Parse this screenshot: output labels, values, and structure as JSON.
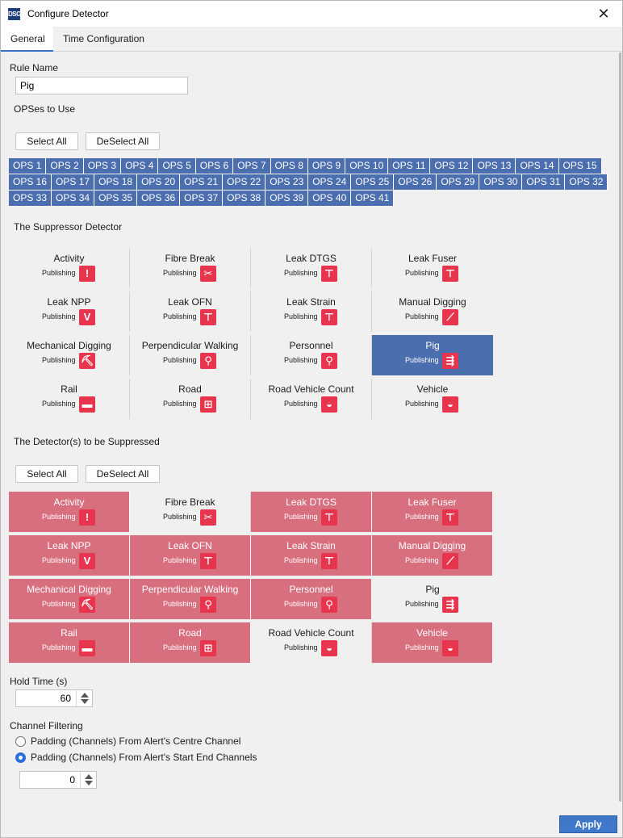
{
  "window": {
    "title": "Configure Detector",
    "app_icon_text": "DSG",
    "close_glyph": "✕"
  },
  "tabs": [
    {
      "label": "General",
      "active": true
    },
    {
      "label": "Time Configuration",
      "active": false
    }
  ],
  "rule": {
    "label": "Rule Name",
    "value": "Pig"
  },
  "opses": {
    "label": "OPSes to Use",
    "select_all": "Select All",
    "deselect_all": "DeSelect All",
    "rows": [
      [
        "OPS 1",
        "OPS 2",
        "OPS 3",
        "OPS 4",
        "OPS 5",
        "OPS 6",
        "OPS 7",
        "OPS 8",
        "OPS 9",
        "OPS 10",
        "OPS 11",
        "OPS 12",
        "OPS 13",
        "OPS 14",
        "OPS 15"
      ],
      [
        "OPS 16",
        "OPS 17",
        "OPS 18",
        "OPS 20",
        "OPS 21",
        "OPS 22",
        "OPS 23",
        "OPS 24",
        "OPS 25",
        "OPS 26",
        "OPS 29",
        "OPS 30",
        "OPS 31",
        "OPS 32"
      ],
      [
        "OPS 33",
        "OPS 34",
        "OPS 35",
        "OPS 36",
        "OPS 37",
        "OPS 38",
        "OPS 39",
        "OPS 40",
        "OPS 41"
      ]
    ]
  },
  "suppressor": {
    "label": "The Suppressor Detector",
    "items": [
      {
        "name": "Activity",
        "status": "Publishing",
        "icon": "alert-icon",
        "glyph": "!",
        "selected": false
      },
      {
        "name": "Fibre Break",
        "status": "Publishing",
        "icon": "fibre-break-icon",
        "glyph": "✂",
        "selected": false
      },
      {
        "name": "Leak DTGS",
        "status": "Publishing",
        "icon": "faucet-icon",
        "glyph": "⊤",
        "selected": false
      },
      {
        "name": "Leak Fuser",
        "status": "Publishing",
        "icon": "faucet-icon",
        "glyph": "⊤",
        "selected": false
      },
      {
        "name": "Leak NPP",
        "status": "Publishing",
        "icon": "v-wave-icon",
        "glyph": "V",
        "selected": false
      },
      {
        "name": "Leak OFN",
        "status": "Publishing",
        "icon": "faucet-icon",
        "glyph": "⊤",
        "selected": false
      },
      {
        "name": "Leak Strain",
        "status": "Publishing",
        "icon": "faucet-icon",
        "glyph": "⊤",
        "selected": false
      },
      {
        "name": "Manual Digging",
        "status": "Publishing",
        "icon": "shovel-icon",
        "glyph": "⟋",
        "selected": false
      },
      {
        "name": "Mechanical Digging",
        "status": "Publishing",
        "icon": "excavator-icon",
        "glyph": "⛏",
        "selected": false
      },
      {
        "name": "Perpendicular Walking",
        "status": "Publishing",
        "icon": "walker-icon",
        "glyph": "⚲",
        "selected": false
      },
      {
        "name": "Personnel",
        "status": "Publishing",
        "icon": "walker-icon",
        "glyph": "⚲",
        "selected": false
      },
      {
        "name": "Pig",
        "status": "Publishing",
        "icon": "pig-icon",
        "glyph": "⇶",
        "selected": true
      },
      {
        "name": "Rail",
        "status": "Publishing",
        "icon": "train-icon",
        "glyph": "▬",
        "selected": false
      },
      {
        "name": "Road",
        "status": "Publishing",
        "icon": "traffic-icon",
        "glyph": "⊞",
        "selected": false
      },
      {
        "name": "Road Vehicle Count",
        "status": "Publishing",
        "icon": "car-icon",
        "glyph": "◒",
        "selected": false
      },
      {
        "name": "Vehicle",
        "status": "Publishing",
        "icon": "car-icon",
        "glyph": "◒",
        "selected": false
      }
    ]
  },
  "suppressed": {
    "label": "The Detector(s) to be Suppressed",
    "select_all": "Select All",
    "deselect_all": "DeSelect All",
    "items": [
      {
        "name": "Activity",
        "status": "Publishing",
        "icon": "alert-icon",
        "glyph": "!",
        "suppressed": true
      },
      {
        "name": "Fibre Break",
        "status": "Publishing",
        "icon": "fibre-break-icon",
        "glyph": "✂",
        "suppressed": false
      },
      {
        "name": "Leak DTGS",
        "status": "Publishing",
        "icon": "faucet-icon",
        "glyph": "⊤",
        "suppressed": true
      },
      {
        "name": "Leak Fuser",
        "status": "Publishing",
        "icon": "faucet-icon",
        "glyph": "⊤",
        "suppressed": true
      },
      {
        "name": "Leak NPP",
        "status": "Publishing",
        "icon": "v-wave-icon",
        "glyph": "V",
        "suppressed": true
      },
      {
        "name": "Leak OFN",
        "status": "Publishing",
        "icon": "faucet-icon",
        "glyph": "⊤",
        "suppressed": true
      },
      {
        "name": "Leak Strain",
        "status": "Publishing",
        "icon": "faucet-icon",
        "glyph": "⊤",
        "suppressed": true
      },
      {
        "name": "Manual Digging",
        "status": "Publishing",
        "icon": "shovel-icon",
        "glyph": "⟋",
        "suppressed": true
      },
      {
        "name": "Mechanical Digging",
        "status": "Publishing",
        "icon": "excavator-icon",
        "glyph": "⛏",
        "suppressed": true
      },
      {
        "name": "Perpendicular Walking",
        "status": "Publishing",
        "icon": "walker-icon",
        "glyph": "⚲",
        "suppressed": true
      },
      {
        "name": "Personnel",
        "status": "Publishing",
        "icon": "walker-icon",
        "glyph": "⚲",
        "suppressed": true
      },
      {
        "name": "Pig",
        "status": "Publishing",
        "icon": "pig-icon",
        "glyph": "⇶",
        "suppressed": false
      },
      {
        "name": "Rail",
        "status": "Publishing",
        "icon": "train-icon",
        "glyph": "▬",
        "suppressed": true
      },
      {
        "name": "Road",
        "status": "Publishing",
        "icon": "traffic-icon",
        "glyph": "⊞",
        "suppressed": true
      },
      {
        "name": "Road Vehicle Count",
        "status": "Publishing",
        "icon": "car-icon",
        "glyph": "◒",
        "suppressed": false
      },
      {
        "name": "Vehicle",
        "status": "Publishing",
        "icon": "car-icon",
        "glyph": "◒",
        "suppressed": true
      }
    ]
  },
  "hold_time": {
    "label": "Hold Time (s)",
    "value": "60"
  },
  "channel_filtering": {
    "label": "Channel Filtering",
    "options": [
      {
        "label": "Padding (Channels) From Alert's Centre Channel",
        "checked": false
      },
      {
        "label": "Padding (Channels) From Alert's Start End Channels",
        "checked": true
      }
    ],
    "padding_value": "0"
  },
  "apply_label": "Apply",
  "colors": {
    "accent": "#4b6eae",
    "suppressed": "#d86f7e",
    "icon_red": "#e8354e",
    "apply": "#3f78c9"
  }
}
